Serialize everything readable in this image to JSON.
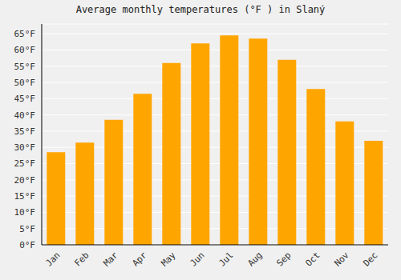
{
  "chart_data": {
    "type": "bar",
    "title": "Average monthly temperatures (°F ) in Slaný",
    "categories": [
      "Jan",
      "Feb",
      "Mar",
      "Apr",
      "May",
      "Jun",
      "Jul",
      "Aug",
      "Sep",
      "Oct",
      "Nov",
      "Dec"
    ],
    "values": [
      28.5,
      31.5,
      38.5,
      46.5,
      56.0,
      62.0,
      64.5,
      63.5,
      57.0,
      48.0,
      38.0,
      32.0
    ],
    "color": "#FFA500",
    "ylim": [
      0,
      68
    ],
    "yticks": [
      {
        "value": 0,
        "label": "0°F"
      },
      {
        "value": 5,
        "label": "5°F"
      },
      {
        "value": 10,
        "label": "10°F"
      },
      {
        "value": 15,
        "label": "15°F"
      },
      {
        "value": 20,
        "label": "20°F"
      },
      {
        "value": 25,
        "label": "25°F"
      },
      {
        "value": 30,
        "label": "30°F"
      },
      {
        "value": 35,
        "label": "35°F"
      },
      {
        "value": 40,
        "label": "40°F"
      },
      {
        "value": 45,
        "label": "45°F"
      },
      {
        "value": 50,
        "label": "50°F"
      },
      {
        "value": 55,
        "label": "55°F"
      },
      {
        "value": 60,
        "label": "60°F"
      },
      {
        "value": 65,
        "label": "65°F"
      }
    ],
    "grid": true
  }
}
